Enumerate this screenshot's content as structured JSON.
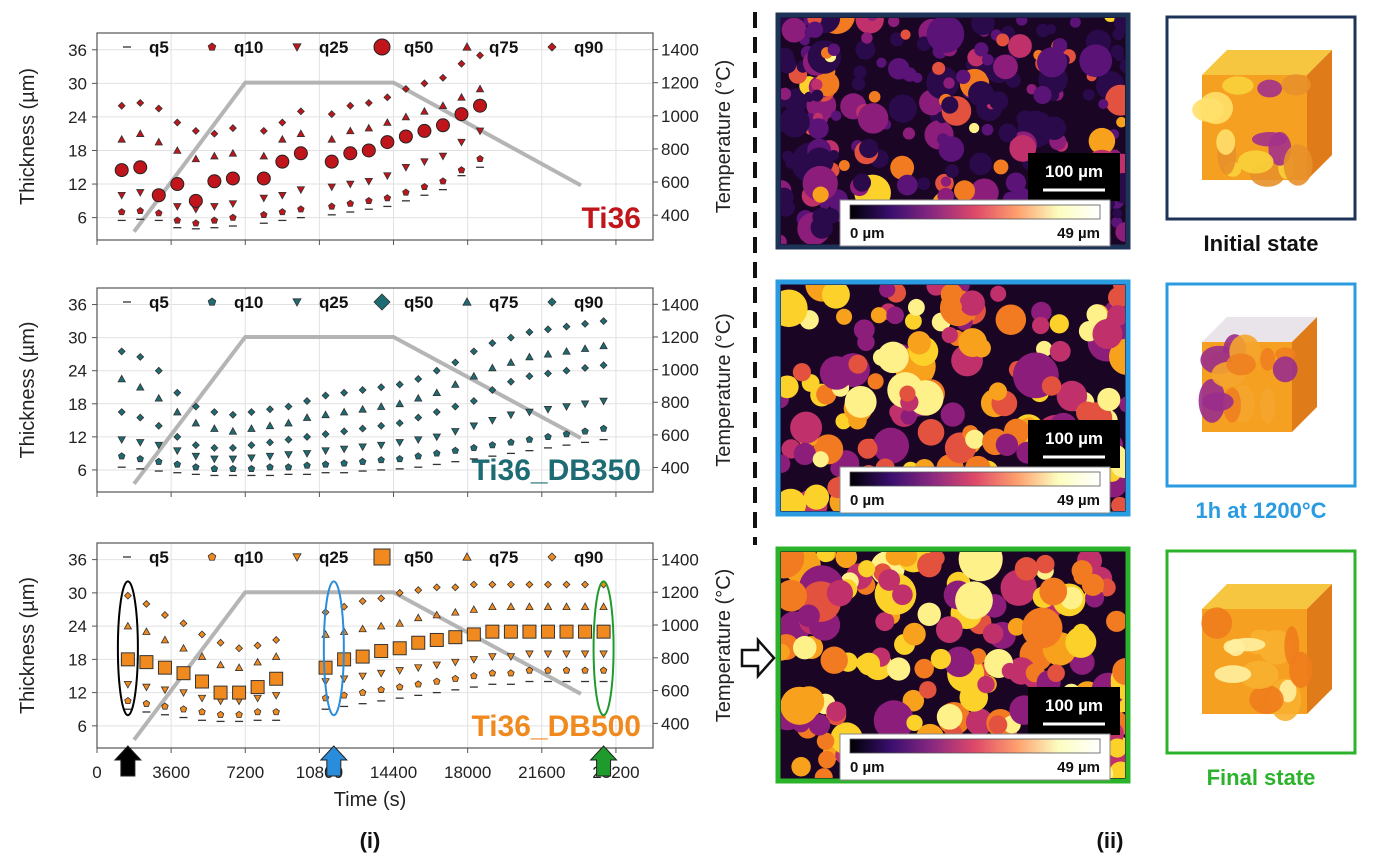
{
  "colors": {
    "ti36": "#c0151b",
    "db350": "#1d6b73",
    "db500": "#f08a1f",
    "temp_line": "#a8a8a8",
    "frame_initial": "#1e3358",
    "frame_1h": "#2a9be0",
    "frame_final": "#2bb32b",
    "arrow_black": "#000000",
    "arrow_blue": "#2a8ddc",
    "arrow_green": "#1f9a2c"
  },
  "legend_labels": [
    "q5",
    "q10",
    "q25",
    "q50",
    "q75",
    "q90"
  ],
  "axes": {
    "ylabel_left": "Thickness (µm)",
    "ylabel_right": "Temperature (°C)",
    "xlabel": "Time (s)",
    "yticks_left": [
      "6",
      "12",
      "18",
      "24",
      "30",
      "36"
    ],
    "yticks_right": [
      "400",
      "600",
      "800",
      "1000",
      "1200",
      "1400"
    ],
    "xticks": [
      "0",
      "3600",
      "7200",
      "10800",
      "14400",
      "18000",
      "21600",
      "25200"
    ]
  },
  "panel_labels": {
    "left": "(i)",
    "right": "(ii)"
  },
  "images": {
    "scale_bar": "100 µm",
    "colorbar_min": "0 µm",
    "colorbar_max": "49 µm",
    "captions": [
      "Initial state",
      "1h at 1200°C",
      "Final state"
    ]
  },
  "chart_data": [
    {
      "type": "scatter",
      "title": "Ti36",
      "xlim": [
        0,
        27000
      ],
      "ylim": [
        2,
        39
      ],
      "y2lim": [
        250,
        1500
      ],
      "temperature_profile": {
        "x": [
          1800,
          7200,
          14400,
          23500
        ],
        "y": [
          300,
          1200,
          1200,
          580
        ]
      },
      "x": [
        1200,
        2100,
        3000,
        3900,
        4800,
        5700,
        6600,
        8100,
        9000,
        9900,
        11400,
        12300,
        13200,
        14100,
        15000,
        15900,
        16800,
        17700,
        18600
      ],
      "series": [
        {
          "name": "q5",
          "values": [
            5.5,
            5.7,
            5.5,
            4.2,
            4.0,
            4.2,
            4.5,
            5.0,
            5.5,
            6.0,
            6.5,
            7.0,
            7.5,
            8.0,
            9.0,
            10.0,
            11.0,
            13.5,
            15.0
          ]
        },
        {
          "name": "q10",
          "values": [
            7.0,
            7.2,
            6.8,
            5.5,
            5.0,
            5.5,
            6.0,
            6.5,
            7.0,
            7.5,
            8.0,
            8.5,
            9.0,
            9.5,
            10.5,
            11.5,
            12.5,
            14.5,
            16.5
          ]
        },
        {
          "name": "q25",
          "values": [
            10.0,
            10.5,
            9.5,
            8.0,
            7.5,
            8.0,
            8.5,
            9.5,
            10.0,
            11.0,
            11.5,
            12.0,
            12.5,
            13.5,
            15.0,
            16.0,
            17.0,
            19.5,
            21.5
          ]
        },
        {
          "name": "q50",
          "values": [
            14.5,
            15.0,
            10.0,
            12.0,
            9.0,
            12.5,
            13.0,
            13.0,
            16.0,
            17.5,
            16.0,
            17.5,
            18.0,
            19.5,
            20.5,
            21.5,
            22.5,
            24.5,
            26.0
          ]
        },
        {
          "name": "q75",
          "values": [
            20.0,
            21.0,
            19.5,
            18.0,
            16.5,
            17.0,
            17.5,
            17.0,
            20.0,
            21.0,
            20.0,
            21.5,
            22.0,
            23.0,
            24.0,
            25.0,
            26.0,
            27.5,
            29.0
          ]
        },
        {
          "name": "q90",
          "values": [
            26.0,
            26.5,
            25.5,
            23.0,
            21.5,
            21.0,
            22.0,
            21.5,
            23.0,
            25.0,
            24.5,
            26.0,
            26.5,
            27.5,
            29.0,
            30.0,
            31.0,
            33.5,
            35.0
          ]
        }
      ]
    },
    {
      "type": "scatter",
      "title": "Ti36_DB350",
      "xlim": [
        0,
        27000
      ],
      "ylim": [
        2,
        39
      ],
      "y2lim": [
        250,
        1500
      ],
      "temperature_profile": {
        "x": [
          1800,
          7200,
          14400,
          23500
        ],
        "y": [
          300,
          1200,
          1200,
          580
        ]
      },
      "x": [
        1200,
        2100,
        3000,
        3900,
        4800,
        5700,
        6600,
        7500,
        8400,
        9300,
        10200,
        11100,
        12000,
        12900,
        13800,
        14700,
        15600,
        16500,
        17400,
        18300,
        19200,
        20100,
        21000,
        21900,
        22800,
        23700,
        24600
      ],
      "series": [
        {
          "name": "q5",
          "values": [
            6.5,
            6.2,
            5.8,
            5.5,
            5.2,
            5.0,
            5.0,
            5.0,
            5.0,
            5.2,
            5.2,
            5.5,
            5.5,
            5.8,
            6.0,
            6.2,
            6.5,
            7.0,
            7.5,
            8.0,
            8.5,
            9.0,
            9.5,
            10.0,
            10.5,
            11.0,
            11.5
          ]
        },
        {
          "name": "q10",
          "values": [
            8.5,
            8.0,
            7.5,
            7.0,
            6.5,
            6.2,
            6.2,
            6.2,
            6.5,
            6.5,
            6.8,
            7.0,
            7.2,
            7.5,
            7.8,
            8.0,
            8.5,
            9.0,
            9.5,
            10.0,
            10.5,
            11.0,
            11.5,
            12.0,
            12.5,
            13.0,
            13.5
          ]
        },
        {
          "name": "q25",
          "values": [
            11.5,
            11.0,
            10.5,
            9.5,
            8.5,
            8.0,
            8.0,
            8.2,
            8.5,
            8.8,
            9.0,
            9.5,
            9.8,
            10.2,
            10.5,
            11.0,
            11.5,
            12.0,
            13.0,
            14.0,
            15.0,
            16.0,
            16.5,
            17.0,
            17.5,
            18.0,
            18.5
          ]
        },
        {
          "name": "q50",
          "values": [
            16.5,
            15.5,
            14.0,
            12.0,
            10.5,
            10.0,
            10.0,
            10.5,
            11.0,
            11.5,
            12.0,
            12.5,
            13.0,
            13.5,
            14.0,
            14.5,
            15.5,
            16.5,
            17.5,
            18.5,
            20.5,
            22.0,
            23.0,
            23.5,
            24.0,
            24.5,
            25.0
          ]
        },
        {
          "name": "q75",
          "values": [
            22.5,
            21.0,
            19.0,
            16.5,
            14.5,
            13.5,
            13.0,
            13.5,
            14.0,
            14.5,
            15.5,
            16.0,
            16.5,
            17.0,
            17.5,
            18.0,
            19.0,
            20.0,
            21.5,
            23.0,
            24.5,
            25.5,
            26.5,
            27.0,
            27.5,
            28.0,
            28.5
          ]
        },
        {
          "name": "q90",
          "values": [
            27.5,
            26.5,
            24.0,
            20.0,
            17.5,
            16.5,
            16.0,
            16.5,
            17.0,
            17.5,
            18.5,
            19.5,
            20.0,
            20.5,
            21.0,
            21.5,
            22.5,
            24.0,
            25.5,
            27.5,
            29.0,
            30.0,
            31.0,
            31.5,
            32.0,
            32.5,
            33.0
          ]
        }
      ]
    },
    {
      "type": "scatter",
      "title": "Ti36_DB500",
      "xlim": [
        0,
        27000
      ],
      "ylim": [
        2,
        39
      ],
      "y2lim": [
        250,
        1500
      ],
      "temperature_profile": {
        "x": [
          1800,
          7200,
          14400,
          23500
        ],
        "y": [
          300,
          1200,
          1200,
          580
        ]
      },
      "x": [
        1500,
        2400,
        3300,
        4200,
        5100,
        6000,
        6900,
        7800,
        8700,
        11100,
        12000,
        12900,
        13800,
        14700,
        15600,
        16500,
        17400,
        18300,
        19200,
        20100,
        21000,
        21900,
        22800,
        23700,
        24600
      ],
      "series": [
        {
          "name": "q5",
          "values": [
            9.0,
            8.5,
            8.0,
            7.5,
            7.0,
            6.8,
            6.8,
            7.0,
            7.0,
            9.0,
            9.5,
            10.0,
            10.5,
            11.0,
            11.5,
            12.0,
            12.5,
            13.0,
            13.5,
            13.5,
            14.0,
            14.0,
            14.0,
            14.0,
            14.0
          ]
        },
        {
          "name": "q10",
          "values": [
            10.5,
            10.0,
            9.5,
            9.0,
            8.5,
            8.0,
            8.0,
            8.5,
            8.5,
            11.0,
            11.5,
            12.0,
            12.5,
            13.0,
            13.5,
            14.0,
            14.5,
            15.0,
            15.5,
            15.5,
            16.0,
            16.0,
            16.0,
            16.0,
            16.0
          ]
        },
        {
          "name": "q25",
          "values": [
            13.5,
            13.0,
            12.5,
            12.0,
            11.0,
            10.5,
            10.5,
            11.0,
            11.5,
            14.0,
            14.5,
            15.0,
            15.5,
            16.0,
            16.5,
            17.0,
            17.5,
            18.0,
            18.5,
            18.5,
            19.0,
            19.0,
            19.0,
            19.0,
            19.0
          ]
        },
        {
          "name": "q50",
          "values": [
            18.0,
            17.5,
            16.5,
            15.5,
            14.0,
            12.0,
            12.0,
            13.0,
            14.5,
            16.5,
            18.0,
            18.5,
            19.5,
            20.0,
            21.0,
            21.5,
            22.0,
            22.5,
            23.0,
            23.0,
            23.0,
            23.0,
            23.0,
            23.0,
            23.0
          ]
        },
        {
          "name": "q75",
          "values": [
            24.0,
            23.0,
            21.5,
            20.0,
            18.5,
            17.0,
            16.5,
            17.5,
            18.5,
            22.5,
            23.0,
            23.5,
            24.0,
            24.5,
            25.5,
            26.0,
            26.5,
            27.0,
            27.5,
            27.5,
            27.5,
            27.5,
            27.5,
            27.5,
            27.5
          ]
        },
        {
          "name": "q90",
          "values": [
            29.5,
            28.0,
            26.0,
            24.5,
            22.5,
            21.0,
            20.0,
            20.5,
            21.5,
            26.5,
            27.5,
            28.5,
            29.0,
            30.0,
            30.5,
            31.0,
            31.0,
            31.5,
            31.5,
            31.5,
            31.5,
            31.5,
            31.5,
            31.5,
            31.5
          ]
        }
      ]
    }
  ]
}
